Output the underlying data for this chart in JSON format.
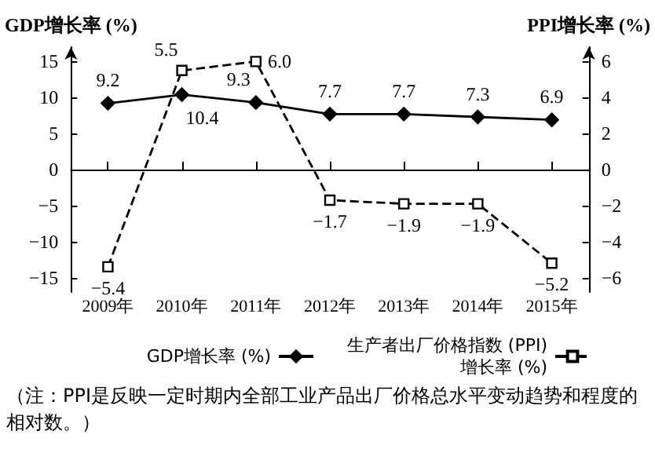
{
  "chart_data": {
    "type": "line",
    "ylabel": "GDP增长率 (%)",
    "y2label": "PPI增长率 (%)",
    "categories": [
      "2009年",
      "2010年",
      "2011年",
      "2012年",
      "2013年",
      "2014年",
      "2015年"
    ],
    "series": [
      {
        "name": "GDP增长率 (%)",
        "color": "#000000",
        "marker": "diamond",
        "line_style": "solid",
        "values": [
          9.2,
          10.4,
          9.3,
          7.7,
          7.7,
          7.3,
          6.9
        ],
        "value_labels": [
          "9.2",
          "10.4",
          "9.3",
          "7.7",
          "7.7",
          "7.3",
          "6.9"
        ]
      },
      {
        "name": "生产者出厂价格指数 (PPI)增长率 (%)",
        "color": "#000000",
        "marker": "square",
        "line_style": "dashed",
        "axis": "y2",
        "values": [
          -5.4,
          5.5,
          6.0,
          -1.7,
          -1.9,
          -1.9,
          -5.2
        ],
        "value_labels": [
          "−5.4",
          "5.5",
          "6.0",
          "−1.7",
          "−1.9",
          "−1.9",
          "−5.2"
        ]
      }
    ],
    "ylim": [
      -17,
      17
    ],
    "yticks": [
      -15,
      -10,
      -5,
      0,
      5,
      10,
      15
    ],
    "y2lim": [
      -6.8,
      6.8
    ],
    "y2ticks": [
      -6,
      -4,
      -2,
      0,
      2,
      4,
      6
    ],
    "legend": "bottom",
    "annotations": [
      "（注：PPI是反映一定时期内全部工业产品出厂价格总水平变动趋势和程度的相对数。）"
    ]
  }
}
